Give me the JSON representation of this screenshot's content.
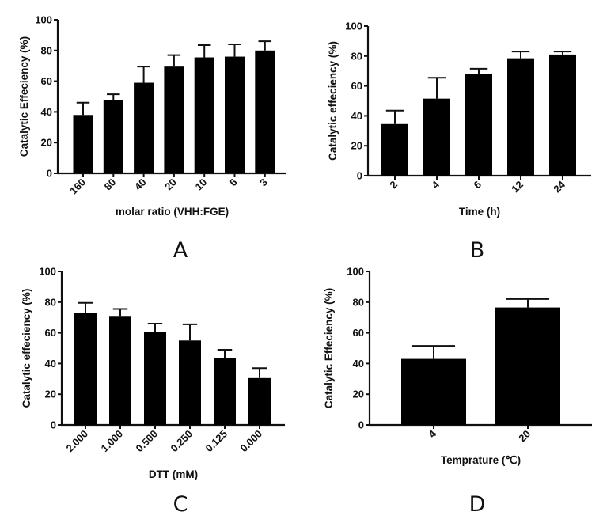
{
  "chart_data": [
    {
      "type": "bar",
      "panel_label": "A",
      "xlabel": "molar ratio (VHH:FGE)",
      "ylabel": "Catalytic Effeciency (%)",
      "categories": [
        "160",
        "80",
        "40",
        "20",
        "10",
        "6",
        "3"
      ],
      "values": [
        38,
        47.5,
        59,
        69.5,
        75.5,
        76,
        80
      ],
      "errors": [
        8,
        4,
        10.5,
        7.5,
        8,
        8,
        6
      ],
      "ylim": [
        0,
        100
      ],
      "yticks": [
        "0",
        "20",
        "40",
        "60",
        "80",
        "100"
      ],
      "grid": false
    },
    {
      "type": "bar",
      "panel_label": "B",
      "xlabel": "Time (h)",
      "ylabel": "Catalytic effeciency (%)",
      "categories": [
        "2",
        "4",
        "6",
        "12",
        "24"
      ],
      "values": [
        34.5,
        51.5,
        68,
        78.5,
        81
      ],
      "errors": [
        9,
        14,
        3.5,
        4.5,
        2
      ],
      "ylim": [
        0,
        100
      ],
      "yticks": [
        "0",
        "20",
        "40",
        "60",
        "80",
        "100"
      ],
      "grid": false
    },
    {
      "type": "bar",
      "panel_label": "C",
      "xlabel": "DTT (mM)",
      "ylabel": "Catalytic effeciency (%)",
      "categories": [
        "2.000",
        "1.000",
        "0.500",
        "0.250",
        "0.125",
        "0.000"
      ],
      "values": [
        73,
        71,
        60.5,
        55,
        43.5,
        30.5
      ],
      "errors": [
        6.5,
        4.5,
        5.5,
        10.5,
        5.5,
        6.5
      ],
      "ylim": [
        0,
        100
      ],
      "yticks": [
        "0",
        "20",
        "40",
        "60",
        "80",
        "100"
      ],
      "grid": false
    },
    {
      "type": "bar",
      "panel_label": "D",
      "xlabel": "Temprature (℃)",
      "ylabel": "Catalytic Effeciency (%)",
      "categories": [
        "4",
        "20"
      ],
      "values": [
        43,
        76.5
      ],
      "errors": [
        8.5,
        5.5
      ],
      "ylim": [
        0,
        100
      ],
      "yticks": [
        "0",
        "20",
        "40",
        "60",
        "80",
        "100"
      ],
      "grid": false
    }
  ]
}
